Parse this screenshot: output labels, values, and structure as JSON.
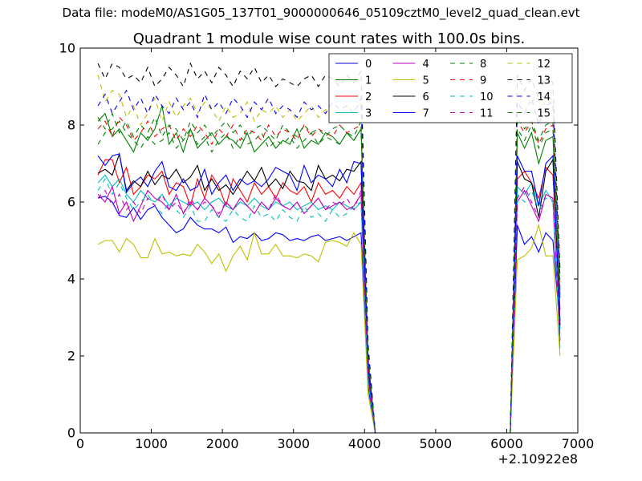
{
  "figure": {
    "supertitle": "Data file: modeM0/AS1G05_137T01_9000000646_05109cztM0_level2_quad_clean.evt"
  },
  "chart_data": {
    "type": "line",
    "title": "Quadrant 1 module wise count rates with 100.0s bins.",
    "xlabel": "",
    "ylabel": "",
    "xlim": [
      0,
      7000
    ],
    "ylim": [
      0,
      10
    ],
    "x_ticks": [
      "0",
      "1000",
      "2000",
      "3000",
      "4000",
      "5000",
      "6000",
      "7000"
    ],
    "y_ticks": [
      "0",
      "2",
      "4",
      "6",
      "8",
      "10"
    ],
    "x_offset_label": "+2.10922e8",
    "grid": false,
    "legend": {
      "position": "top-right",
      "columns": 4
    },
    "x": [
      250,
      350,
      450,
      550,
      650,
      750,
      850,
      950,
      1050,
      1150,
      1250,
      1350,
      1450,
      1550,
      1650,
      1750,
      1850,
      1950,
      2050,
      2150,
      2250,
      2350,
      2450,
      2550,
      2650,
      2750,
      2850,
      2950,
      3050,
      3150,
      3250,
      3350,
      3450,
      3550,
      3650,
      3750,
      3850,
      3950,
      4050,
      4150,
      4250,
      4350,
      4450,
      4550,
      4650,
      4750,
      4850,
      4950,
      5050,
      5150,
      5250,
      5350,
      5450,
      5550,
      5650,
      5750,
      5850,
      5950,
      6050,
      6150,
      6250,
      6350,
      6450,
      6550,
      6650,
      6750
    ],
    "series": [
      {
        "name": "0",
        "color": "#0000ff",
        "dash": "solid",
        "values": [
          6.1,
          6.15,
          6.0,
          5.65,
          5.6,
          5.85,
          5.55,
          5.8,
          5.9,
          5.6,
          5.4,
          5.2,
          5.3,
          5.6,
          5.4,
          5.3,
          5.3,
          5.2,
          5.35,
          4.95,
          5.1,
          5.05,
          5.2,
          5.0,
          5.05,
          5.2,
          5.15,
          5.0,
          5.05,
          5.0,
          5.1,
          5.15,
          5.0,
          5.05,
          5.1,
          5.0,
          5.1,
          5.2,
          1.2,
          0.0,
          0.0,
          0.0,
          0.0,
          0.0,
          0.0,
          0.0,
          0.0,
          0.0,
          0.0,
          0.0,
          0.0,
          0.0,
          0.0,
          0.0,
          0.0,
          0.0,
          0.0,
          0.0,
          0.0,
          5.4,
          4.9,
          5.1,
          4.7,
          5.2,
          5.0,
          2.7
        ]
      },
      {
        "name": "1",
        "color": "#008000",
        "dash": "solid",
        "values": [
          8.1,
          8.3,
          7.7,
          7.9,
          7.6,
          7.3,
          7.8,
          7.6,
          7.9,
          8.5,
          7.5,
          7.8,
          7.3,
          7.9,
          7.4,
          7.6,
          7.8,
          7.5,
          7.7,
          7.6,
          7.4,
          7.8,
          7.3,
          7.5,
          7.7,
          7.4,
          7.6,
          7.5,
          7.9,
          7.4,
          7.6,
          7.5,
          7.8,
          7.7,
          7.5,
          7.8,
          7.6,
          7.9,
          1.9,
          0.0,
          0.0,
          0.0,
          0.0,
          0.0,
          0.0,
          0.0,
          0.0,
          0.0,
          0.0,
          0.0,
          0.0,
          0.0,
          0.0,
          0.0,
          0.0,
          0.0,
          0.0,
          0.0,
          0.0,
          7.8,
          7.4,
          7.8,
          7.0,
          7.6,
          7.7,
          3.6
        ]
      },
      {
        "name": "2",
        "color": "#ff0000",
        "dash": "solid",
        "values": [
          6.7,
          7.1,
          7.1,
          6.5,
          6.9,
          6.2,
          6.4,
          6.7,
          6.6,
          6.8,
          6.2,
          6.5,
          6.4,
          5.9,
          6.6,
          6.1,
          6.7,
          6.4,
          5.9,
          6.6,
          6.3,
          6.0,
          6.5,
          6.2,
          6.4,
          6.1,
          6.5,
          6.3,
          6.2,
          6.4,
          6.0,
          6.5,
          6.2,
          6.3,
          6.1,
          6.4,
          6.2,
          6.5,
          1.6,
          0.0,
          0.0,
          0.0,
          0.0,
          0.0,
          0.0,
          0.0,
          0.0,
          0.0,
          0.0,
          0.0,
          0.0,
          0.0,
          0.0,
          0.0,
          0.0,
          0.0,
          0.0,
          0.0,
          0.0,
          6.6,
          6.8,
          6.5,
          6.1,
          6.9,
          6.7,
          3.2
        ]
      },
      {
        "name": "3",
        "color": "#00bfbf",
        "dash": "solid",
        "values": [
          6.5,
          6.7,
          6.4,
          6.6,
          6.2,
          6.0,
          6.3,
          6.1,
          6.0,
          6.2,
          5.9,
          6.1,
          6.0,
          5.9,
          6.0,
          5.8,
          6.0,
          6.1,
          5.9,
          5.8,
          6.0,
          5.9,
          6.1,
          5.9,
          5.8,
          6.0,
          5.9,
          6.0,
          5.8,
          5.9,
          6.0,
          5.8,
          5.9,
          5.8,
          6.0,
          5.9,
          5.8,
          6.0,
          1.4,
          0.0,
          0.0,
          0.0,
          0.0,
          0.0,
          0.0,
          0.0,
          0.0,
          0.0,
          0.0,
          0.0,
          0.0,
          0.0,
          0.0,
          0.0,
          0.0,
          0.0,
          0.0,
          0.0,
          0.0,
          6.4,
          6.2,
          6.5,
          5.9,
          6.3,
          6.0,
          2.2
        ]
      },
      {
        "name": "4",
        "color": "#bf00bf",
        "dash": "solid",
        "values": [
          6.2,
          6.0,
          6.4,
          5.7,
          6.0,
          5.5,
          5.9,
          6.3,
          6.1,
          6.0,
          5.8,
          6.2,
          5.7,
          6.0,
          5.8,
          6.1,
          5.9,
          5.6,
          6.0,
          5.8,
          6.1,
          5.9,
          5.7,
          6.0,
          5.8,
          6.1,
          5.9,
          5.8,
          6.0,
          5.7,
          5.9,
          6.1,
          5.8,
          5.9,
          6.0,
          5.8,
          5.9,
          6.2,
          1.5,
          0.0,
          0.0,
          0.0,
          0.0,
          0.0,
          0.0,
          0.0,
          0.0,
          0.0,
          0.0,
          0.0,
          0.0,
          0.0,
          0.0,
          0.0,
          0.0,
          0.0,
          0.0,
          0.0,
          0.0,
          6.0,
          6.3,
          5.9,
          5.5,
          6.2,
          6.1,
          2.4
        ]
      },
      {
        "name": "5",
        "color": "#bfbf00",
        "dash": "solid",
        "values": [
          4.9,
          5.0,
          5.0,
          4.7,
          5.05,
          4.9,
          4.55,
          4.55,
          5.05,
          4.65,
          4.7,
          4.6,
          4.65,
          4.6,
          4.9,
          4.7,
          4.4,
          4.65,
          4.2,
          4.6,
          4.85,
          4.5,
          5.2,
          4.65,
          4.65,
          4.9,
          4.6,
          4.6,
          4.55,
          4.65,
          4.6,
          4.45,
          4.95,
          5.0,
          4.95,
          4.85,
          5.2,
          4.9,
          1.0,
          0.0,
          0.0,
          0.0,
          0.0,
          0.0,
          0.0,
          0.0,
          0.0,
          0.0,
          0.0,
          0.0,
          0.0,
          0.0,
          0.0,
          0.0,
          0.0,
          0.0,
          0.0,
          0.0,
          0.0,
          4.5,
          4.6,
          4.8,
          5.4,
          4.6,
          4.6,
          2.0
        ]
      },
      {
        "name": "6",
        "color": "#000000",
        "dash": "solid",
        "values": [
          6.75,
          6.85,
          6.7,
          7.25,
          6.3,
          6.55,
          6.4,
          6.8,
          6.45,
          6.7,
          6.6,
          6.85,
          6.5,
          6.65,
          6.95,
          6.3,
          6.6,
          6.3,
          6.45,
          6.2,
          6.5,
          6.8,
          6.55,
          6.9,
          6.4,
          6.6,
          6.35,
          6.8,
          6.55,
          6.5,
          6.3,
          6.95,
          6.6,
          6.7,
          6.55,
          6.85,
          6.8,
          7.05,
          1.7,
          0.0,
          0.0,
          0.0,
          0.0,
          0.0,
          0.0,
          0.0,
          0.0,
          0.0,
          0.0,
          0.0,
          0.0,
          0.0,
          0.0,
          0.0,
          0.0,
          0.0,
          0.0,
          0.0,
          0.0,
          7.05,
          6.6,
          6.5,
          5.6,
          6.8,
          7.1,
          2.8
        ]
      },
      {
        "name": "7",
        "color": "#0000ff",
        "dash": "solid",
        "values": [
          7.2,
          6.95,
          7.2,
          7.25,
          6.25,
          6.5,
          6.65,
          6.4,
          6.8,
          7.05,
          6.4,
          6.3,
          6.6,
          6.3,
          6.4,
          6.85,
          6.2,
          6.5,
          6.7,
          6.3,
          6.6,
          6.45,
          6.55,
          6.4,
          6.6,
          6.9,
          6.8,
          6.7,
          6.3,
          6.95,
          6.5,
          6.7,
          6.6,
          6.4,
          6.85,
          6.5,
          7.05,
          7.0,
          1.8,
          0.0,
          0.0,
          0.0,
          0.0,
          0.0,
          0.0,
          0.0,
          0.0,
          0.0,
          0.0,
          0.0,
          0.0,
          0.0,
          0.0,
          0.0,
          0.0,
          0.0,
          0.0,
          0.0,
          0.0,
          7.2,
          6.8,
          6.8,
          5.9,
          7.0,
          7.2,
          2.9
        ]
      },
      {
        "name": "8",
        "color": "#008000",
        "dash": "dashed",
        "values": [
          7.5,
          7.8,
          7.9,
          8.1,
          7.8,
          7.6,
          7.4,
          7.7,
          7.5,
          7.6,
          7.8,
          7.4,
          7.6,
          7.9,
          7.5,
          7.7,
          7.3,
          7.6,
          7.8,
          7.4,
          7.7,
          7.5,
          7.6,
          7.8,
          7.4,
          7.6,
          7.5,
          7.7,
          7.4,
          7.6,
          7.8,
          7.5,
          7.7,
          7.6,
          7.5,
          7.8,
          7.6,
          7.9,
          1.9,
          0.0,
          0.0,
          0.0,
          0.0,
          0.0,
          0.0,
          0.0,
          0.0,
          0.0,
          0.0,
          0.0,
          0.0,
          0.0,
          0.0,
          0.0,
          0.0,
          0.0,
          0.0,
          0.0,
          0.0,
          7.9,
          7.6,
          8.0,
          7.4,
          7.8,
          7.9,
          3.5
        ]
      },
      {
        "name": "9",
        "color": "#ff0000",
        "dash": "dashed",
        "values": [
          7.9,
          8.1,
          7.7,
          8.2,
          8.0,
          7.6,
          7.8,
          8.1,
          7.7,
          7.9,
          8.0,
          7.6,
          7.9,
          7.7,
          8.0,
          7.8,
          7.5,
          7.9,
          7.7,
          8.0,
          7.6,
          7.9,
          7.8,
          7.6,
          8.0,
          7.7,
          7.9,
          7.8,
          7.6,
          8.0,
          7.7,
          7.9,
          7.8,
          7.7,
          8.0,
          7.8,
          7.9,
          8.0,
          2.0,
          0.0,
          0.0,
          0.0,
          0.0,
          0.0,
          0.0,
          0.0,
          0.0,
          0.0,
          0.0,
          0.0,
          0.0,
          0.0,
          0.0,
          0.0,
          0.0,
          0.0,
          0.0,
          0.0,
          0.0,
          8.1,
          7.8,
          8.1,
          7.5,
          7.9,
          8.0,
          3.8
        ]
      },
      {
        "name": "10",
        "color": "#00bfbf",
        "dash": "dashed",
        "values": [
          6.3,
          6.6,
          6.2,
          6.5,
          6.1,
          5.8,
          6.0,
          6.2,
          5.9,
          5.7,
          6.0,
          5.8,
          5.6,
          5.9,
          5.5,
          5.5,
          5.8,
          5.6,
          5.5,
          5.8,
          5.6,
          5.5,
          5.9,
          5.6,
          5.7,
          5.5,
          5.8,
          5.6,
          5.5,
          5.9,
          5.6,
          5.7,
          5.5,
          5.8,
          5.6,
          5.7,
          5.9,
          6.0,
          1.3,
          0.0,
          0.0,
          0.0,
          0.0,
          0.0,
          0.0,
          0.0,
          0.0,
          0.0,
          0.0,
          0.0,
          0.0,
          0.0,
          0.0,
          0.0,
          0.0,
          0.0,
          0.0,
          0.0,
          0.0,
          6.2,
          6.0,
          6.3,
          5.8,
          6.1,
          6.0,
          2.3
        ]
      },
      {
        "name": "11",
        "color": "#bf00bf",
        "dash": "dashed",
        "values": [
          6.1,
          6.3,
          5.9,
          6.2,
          5.8,
          6.0,
          5.7,
          6.1,
          5.9,
          6.2,
          5.8,
          6.0,
          5.7,
          6.1,
          5.8,
          6.0,
          5.9,
          5.7,
          6.0,
          5.8,
          6.1,
          5.9,
          5.7,
          6.0,
          5.8,
          6.2,
          5.9,
          5.8,
          6.0,
          5.7,
          5.9,
          6.1,
          5.8,
          6.0,
          5.9,
          6.1,
          5.8,
          6.3,
          1.5,
          0.0,
          0.0,
          0.0,
          0.0,
          0.0,
          0.0,
          0.0,
          0.0,
          0.0,
          0.0,
          0.0,
          0.0,
          0.0,
          0.0,
          0.0,
          0.0,
          0.0,
          0.0,
          0.0,
          0.0,
          6.1,
          6.4,
          6.0,
          5.6,
          6.2,
          6.1,
          2.5
        ]
      },
      {
        "name": "12",
        "color": "#bfbf00",
        "dash": "dashed",
        "values": [
          9.3,
          8.6,
          8.9,
          8.8,
          8.2,
          8.5,
          8.0,
          8.3,
          8.7,
          8.1,
          8.6,
          8.2,
          8.5,
          8.7,
          8.3,
          8.6,
          8.4,
          8.1,
          8.5,
          8.2,
          8.3,
          8.6,
          8.1,
          8.4,
          8.3,
          8.5,
          8.2,
          8.4,
          8.1,
          8.3,
          8.5,
          8.2,
          8.4,
          8.3,
          8.1,
          8.5,
          8.3,
          8.6,
          2.1,
          0.0,
          0.0,
          0.0,
          0.0,
          0.0,
          0.0,
          0.0,
          0.0,
          0.0,
          0.0,
          0.0,
          0.0,
          0.0,
          0.0,
          0.0,
          0.0,
          0.0,
          0.0,
          0.0,
          0.0,
          8.8,
          8.4,
          8.6,
          8.1,
          8.7,
          8.5,
          3.9
        ]
      },
      {
        "name": "13",
        "color": "#000000",
        "dash": "dashed",
        "values": [
          9.6,
          9.2,
          9.6,
          9.5,
          9.2,
          9.3,
          9.1,
          9.5,
          9.0,
          9.2,
          9.5,
          9.3,
          9.0,
          9.6,
          9.2,
          9.4,
          9.1,
          9.5,
          9.3,
          9.0,
          9.4,
          9.2,
          9.5,
          9.1,
          9.3,
          9.0,
          9.2,
          9.1,
          9.0,
          9.2,
          9.3,
          9.0,
          9.3,
          9.2,
          9.0,
          9.3,
          9.1,
          9.4,
          2.3,
          0.0,
          0.0,
          0.0,
          0.0,
          0.0,
          0.0,
          0.0,
          0.0,
          0.0,
          0.0,
          0.0,
          0.0,
          0.0,
          0.0,
          0.0,
          0.0,
          0.0,
          0.0,
          0.0,
          0.0,
          9.3,
          8.9,
          9.2,
          8.7,
          9.3,
          9.1,
          4.2
        ]
      },
      {
        "name": "14",
        "color": "#0000ff",
        "dash": "dashed",
        "values": [
          8.5,
          8.8,
          8.3,
          8.6,
          8.9,
          8.4,
          8.7,
          8.3,
          8.8,
          8.5,
          8.3,
          8.7,
          8.4,
          8.6,
          8.2,
          8.8,
          8.4,
          8.6,
          8.3,
          8.7,
          8.5,
          8.2,
          8.6,
          8.4,
          8.7,
          8.3,
          8.5,
          8.4,
          8.2,
          8.6,
          8.4,
          8.5,
          8.3,
          8.6,
          8.4,
          8.5,
          8.3,
          8.7,
          2.1,
          0.0,
          0.0,
          0.0,
          0.0,
          0.0,
          0.0,
          0.0,
          0.0,
          0.0,
          0.0,
          0.0,
          0.0,
          0.0,
          0.0,
          0.0,
          0.0,
          0.0,
          0.0,
          0.0,
          0.0,
          8.6,
          8.3,
          8.7,
          8.0,
          8.5,
          8.6,
          4.0
        ]
      },
      {
        "name": "15",
        "color": "#008000",
        "dash": "dashed",
        "values": [
          8.2,
          7.9,
          8.3,
          7.8,
          8.1,
          7.7,
          8.0,
          7.8,
          8.2,
          7.7,
          8.0,
          7.9,
          7.6,
          8.1,
          7.8,
          8.0,
          7.7,
          7.9,
          8.1,
          7.8,
          8.0,
          7.7,
          7.9,
          8.0,
          7.8,
          7.6,
          8.0,
          7.8,
          7.7,
          8.0,
          7.8,
          7.9,
          7.7,
          7.9,
          8.0,
          7.8,
          7.7,
          8.1,
          2.0,
          0.0,
          0.0,
          0.0,
          0.0,
          0.0,
          0.0,
          0.0,
          0.0,
          0.0,
          0.0,
          0.0,
          0.0,
          0.0,
          0.0,
          0.0,
          0.0,
          0.0,
          0.0,
          0.0,
          0.0,
          8.2,
          7.9,
          8.1,
          7.6,
          8.0,
          8.1,
          3.7
        ]
      }
    ]
  }
}
